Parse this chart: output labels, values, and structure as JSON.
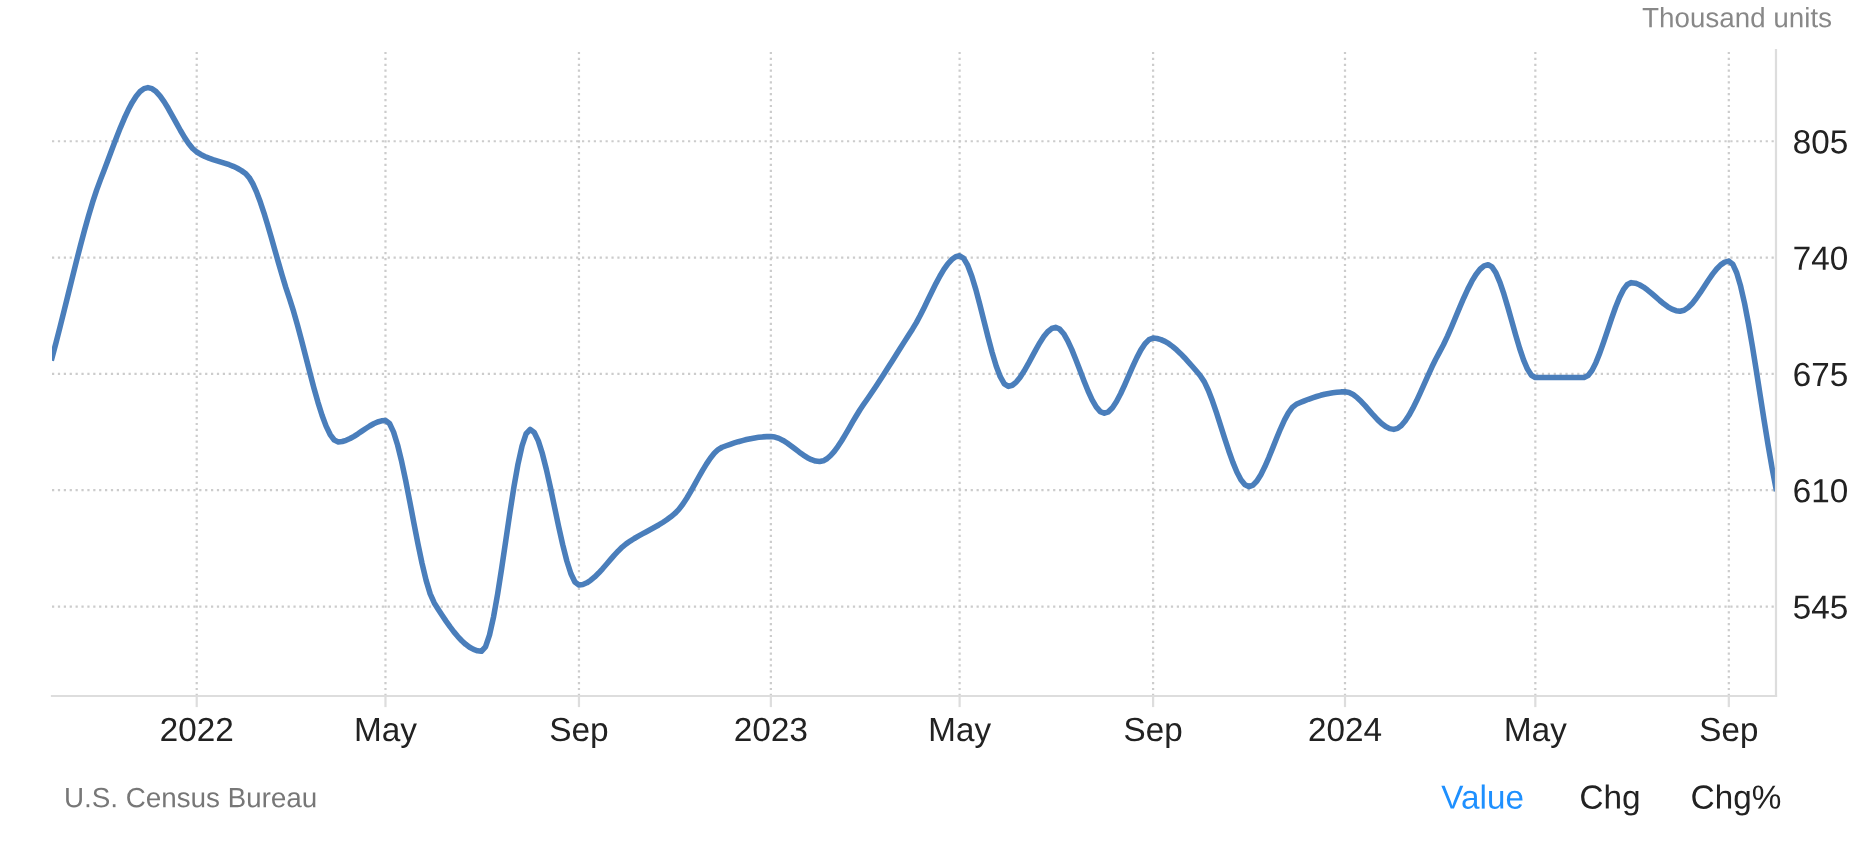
{
  "chart_data": {
    "type": "line",
    "ylabel": "Thousand units",
    "x": [
      "2021-10",
      "2021-11",
      "2021-12",
      "2022-01",
      "2022-02",
      "2022-03",
      "2022-04",
      "2022-05",
      "2022-06",
      "2022-07",
      "2022-08",
      "2022-09",
      "2022-10",
      "2022-11",
      "2022-12",
      "2023-01",
      "2023-02",
      "2023-03",
      "2023-04",
      "2023-05",
      "2023-06",
      "2023-07",
      "2023-08",
      "2023-09",
      "2023-10",
      "2023-11",
      "2023-12",
      "2024-01",
      "2024-02",
      "2024-03",
      "2024-04",
      "2024-05",
      "2024-06",
      "2024-07",
      "2024-08",
      "2024-09",
      "2024-10"
    ],
    "series": [
      {
        "color": "#4a7ebb",
        "values": [
          684,
          784,
          835,
          799,
          787,
          717,
          637,
          649,
          547,
          520,
          644,
          557,
          580,
          597,
          634,
          640,
          626,
          658,
          700,
          741,
          668,
          701,
          653,
          695,
          674,
          612,
          658,
          665,
          644,
          687,
          736,
          673,
          673,
          726,
          710,
          738,
          611
        ]
      }
    ],
    "xlim": [
      "2021-10",
      "2024-10"
    ],
    "xticks": [
      {
        "value": "2022-01",
        "label": "2022"
      },
      {
        "value": "2022-05",
        "label": "May"
      },
      {
        "value": "2022-09",
        "label": "Sep"
      },
      {
        "value": "2023-01",
        "label": "2023"
      },
      {
        "value": "2023-05",
        "label": "May"
      },
      {
        "value": "2023-09",
        "label": "Sep"
      },
      {
        "value": "2024-01",
        "label": "2024"
      },
      {
        "value": "2024-05",
        "label": "May"
      },
      {
        "value": "2024-09",
        "label": "Sep"
      }
    ],
    "ylim": [
      495,
      856
    ],
    "yticks": [
      545,
      610,
      675,
      740,
      805
    ],
    "grid": true,
    "legend": false,
    "marker": "none",
    "line_style": "solid",
    "annotations": [
      "U.S. Census Bureau",
      "Value",
      "Chg",
      "Chg%"
    ]
  }
}
